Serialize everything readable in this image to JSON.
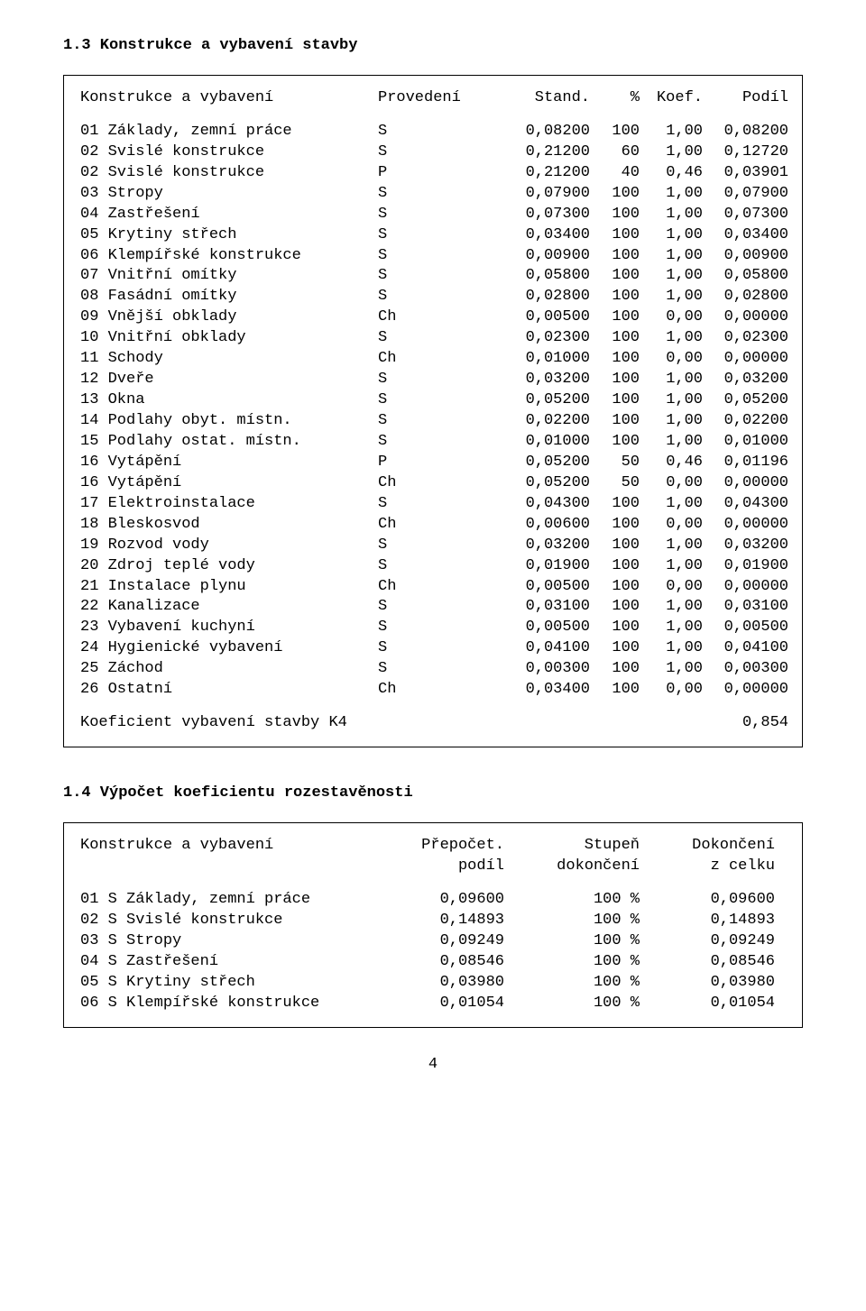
{
  "section1": {
    "title": "1.3 Konstrukce a vybavení stavby",
    "header": {
      "name": "Konstrukce a vybavení",
      "prov": "Provedení",
      "stand": "Stand.",
      "pct": "%",
      "koef": "Koef.",
      "podil": "Podíl"
    },
    "rows": [
      {
        "n": "01 Základy, zemní práce",
        "p": "S",
        "s": "0,08200",
        "pc": "100",
        "k": "1,00",
        "d": "0,08200"
      },
      {
        "n": "02 Svislé konstrukce",
        "p": "S",
        "s": "0,21200",
        "pc": "60",
        "k": "1,00",
        "d": "0,12720"
      },
      {
        "n": "02 Svislé konstrukce",
        "p": "P",
        "s": "0,21200",
        "pc": "40",
        "k": "0,46",
        "d": "0,03901"
      },
      {
        "n": "03 Stropy",
        "p": "S",
        "s": "0,07900",
        "pc": "100",
        "k": "1,00",
        "d": "0,07900"
      },
      {
        "n": "04 Zastřešení",
        "p": "S",
        "s": "0,07300",
        "pc": "100",
        "k": "1,00",
        "d": "0,07300"
      },
      {
        "n": "05 Krytiny střech",
        "p": "S",
        "s": "0,03400",
        "pc": "100",
        "k": "1,00",
        "d": "0,03400"
      },
      {
        "n": "06 Klempířské konstrukce",
        "p": "S",
        "s": "0,00900",
        "pc": "100",
        "k": "1,00",
        "d": "0,00900"
      },
      {
        "n": "07 Vnitřní omítky",
        "p": "S",
        "s": "0,05800",
        "pc": "100",
        "k": "1,00",
        "d": "0,05800"
      },
      {
        "n": "08 Fasádní omítky",
        "p": "S",
        "s": "0,02800",
        "pc": "100",
        "k": "1,00",
        "d": "0,02800"
      },
      {
        "n": "09 Vnější obklady",
        "p": "Ch",
        "s": "0,00500",
        "pc": "100",
        "k": "0,00",
        "d": "0,00000"
      },
      {
        "n": "10 Vnitřní obklady",
        "p": "S",
        "s": "0,02300",
        "pc": "100",
        "k": "1,00",
        "d": "0,02300"
      },
      {
        "n": "11 Schody",
        "p": "Ch",
        "s": "0,01000",
        "pc": "100",
        "k": "0,00",
        "d": "0,00000"
      },
      {
        "n": "12 Dveře",
        "p": "S",
        "s": "0,03200",
        "pc": "100",
        "k": "1,00",
        "d": "0,03200"
      },
      {
        "n": "13 Okna",
        "p": "S",
        "s": "0,05200",
        "pc": "100",
        "k": "1,00",
        "d": "0,05200"
      },
      {
        "n": "14 Podlahy obyt. místn.",
        "p": "S",
        "s": "0,02200",
        "pc": "100",
        "k": "1,00",
        "d": "0,02200"
      },
      {
        "n": "15 Podlahy ostat. místn.",
        "p": "S",
        "s": "0,01000",
        "pc": "100",
        "k": "1,00",
        "d": "0,01000"
      },
      {
        "n": "16 Vytápění",
        "p": "P",
        "s": "0,05200",
        "pc": "50",
        "k": "0,46",
        "d": "0,01196"
      },
      {
        "n": "16 Vytápění",
        "p": "Ch",
        "s": "0,05200",
        "pc": "50",
        "k": "0,00",
        "d": "0,00000"
      },
      {
        "n": "17 Elektroinstalace",
        "p": "S",
        "s": "0,04300",
        "pc": "100",
        "k": "1,00",
        "d": "0,04300"
      },
      {
        "n": "18 Bleskosvod",
        "p": "Ch",
        "s": "0,00600",
        "pc": "100",
        "k": "0,00",
        "d": "0,00000"
      },
      {
        "n": "19 Rozvod vody",
        "p": "S",
        "s": "0,03200",
        "pc": "100",
        "k": "1,00",
        "d": "0,03200"
      },
      {
        "n": "20 Zdroj teplé vody",
        "p": "S",
        "s": "0,01900",
        "pc": "100",
        "k": "1,00",
        "d": "0,01900"
      },
      {
        "n": "21 Instalace plynu",
        "p": "Ch",
        "s": "0,00500",
        "pc": "100",
        "k": "0,00",
        "d": "0,00000"
      },
      {
        "n": "22 Kanalizace",
        "p": "S",
        "s": "0,03100",
        "pc": "100",
        "k": "1,00",
        "d": "0,03100"
      },
      {
        "n": "23 Vybavení kuchyní",
        "p": "S",
        "s": "0,00500",
        "pc": "100",
        "k": "1,00",
        "d": "0,00500"
      },
      {
        "n": "24 Hygienické vybavení",
        "p": "S",
        "s": "0,04100",
        "pc": "100",
        "k": "1,00",
        "d": "0,04100"
      },
      {
        "n": "25 Záchod",
        "p": "S",
        "s": "0,00300",
        "pc": "100",
        "k": "1,00",
        "d": "0,00300"
      },
      {
        "n": "26 Ostatní",
        "p": "Ch",
        "s": "0,03400",
        "pc": "100",
        "k": "0,00",
        "d": "0,00000"
      }
    ],
    "footer": {
      "label": "Koeficient vybavení stavby K4",
      "value": "0,854"
    }
  },
  "section2": {
    "title": "1.4 Výpočet koeficientu rozestavěnosti",
    "header": {
      "name": "Konstrukce a vybavení",
      "prep1": "Přepočet.",
      "prep2": "podíl",
      "stup1": "Stupeň",
      "stup2": "dokončení",
      "dok1": "Dokončení",
      "dok2": "z celku"
    },
    "rows": [
      {
        "n": "01 S Základy, zemní práce",
        "a": "0,09600",
        "b": "100 %",
        "c": "0,09600"
      },
      {
        "n": "02 S Svislé konstrukce",
        "a": "0,14893",
        "b": "100 %",
        "c": "0,14893"
      },
      {
        "n": "03 S Stropy",
        "a": "0,09249",
        "b": "100 %",
        "c": "0,09249"
      },
      {
        "n": "04 S Zastřešení",
        "a": "0,08546",
        "b": "100 %",
        "c": "0,08546"
      },
      {
        "n": "05 S Krytiny střech",
        "a": "0,03980",
        "b": "100 %",
        "c": "0,03980"
      },
      {
        "n": "06 S Klempířské konstrukce",
        "a": "0,01054",
        "b": "100 %",
        "c": "0,01054"
      }
    ]
  },
  "pagenum": "4"
}
